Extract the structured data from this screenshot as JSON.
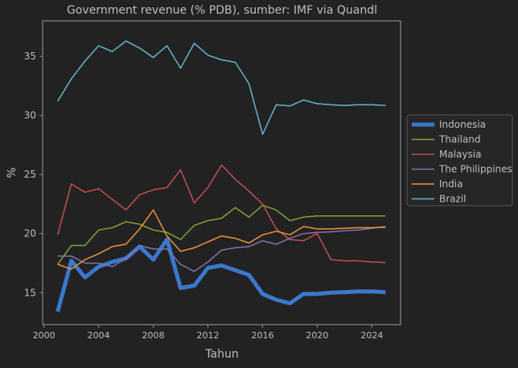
{
  "chart_data": {
    "type": "line",
    "title": "Government revenue (% PDB), sumber: IMF via Quandl",
    "xlabel": "Tahun",
    "ylabel": "%",
    "xlim": [
      1999.9,
      2026.1
    ],
    "ylim": [
      12.3,
      38.0
    ],
    "xticks": [
      2000,
      2004,
      2008,
      2012,
      2016,
      2020,
      2024
    ],
    "yticks": [
      15,
      20,
      25,
      30,
      35
    ],
    "grid": false,
    "legend_position": "center-right-outside",
    "x": [
      2001,
      2002,
      2003,
      2004,
      2005,
      2006,
      2007,
      2008,
      2009,
      2010,
      2011,
      2012,
      2013,
      2014,
      2015,
      2016,
      2017,
      2018,
      2019,
      2020,
      2021,
      2022,
      2023,
      2024,
      2025
    ],
    "series": [
      {
        "name": "Indonesia",
        "color": "#3a78cc",
        "width": 5,
        "values": [
          13.4,
          17.7,
          16.3,
          17.2,
          17.6,
          17.9,
          18.9,
          17.8,
          19.5,
          15.4,
          15.6,
          17.1,
          17.3,
          16.9,
          16.5,
          14.9,
          14.4,
          14.1,
          14.9,
          14.9,
          15.0,
          15.05,
          15.1,
          15.1,
          15.05
        ]
      },
      {
        "name": "Thailand",
        "color": "#7ea33a",
        "width": 1.5,
        "values": [
          17.4,
          19.0,
          19.0,
          20.3,
          20.5,
          21.0,
          20.8,
          20.3,
          20.1,
          19.5,
          20.7,
          21.1,
          21.3,
          22.2,
          21.4,
          22.4,
          22.0,
          21.1,
          21.4,
          21.5,
          21.5,
          21.5,
          21.5,
          21.5,
          21.5
        ]
      },
      {
        "name": "Malaysia",
        "color": "#c44e52",
        "width": 1.5,
        "values": [
          19.9,
          24.2,
          23.5,
          23.8,
          22.9,
          22.0,
          23.3,
          23.7,
          23.9,
          25.4,
          22.6,
          23.9,
          25.8,
          24.6,
          23.6,
          22.5,
          20.4,
          19.5,
          19.4,
          20.0,
          17.8,
          17.7,
          17.7,
          17.6,
          17.55
        ]
      },
      {
        "name": "The Philippines",
        "color": "#8172b3",
        "width": 1.5,
        "values": [
          18.1,
          18.1,
          17.5,
          17.5,
          17.2,
          17.9,
          19.0,
          18.7,
          18.7,
          17.4,
          16.8,
          17.6,
          18.6,
          18.8,
          18.9,
          19.4,
          19.1,
          19.6,
          20.0,
          20.1,
          20.15,
          20.25,
          20.3,
          20.45,
          20.6
        ]
      },
      {
        "name": "India",
        "color": "#f0913c",
        "width": 1.5,
        "values": [
          17.4,
          17.0,
          17.8,
          18.3,
          18.9,
          19.1,
          20.4,
          22.0,
          19.8,
          18.5,
          18.8,
          19.3,
          19.8,
          19.6,
          19.2,
          19.9,
          20.2,
          19.9,
          20.6,
          20.4,
          20.4,
          20.45,
          20.5,
          20.5,
          20.55
        ]
      },
      {
        "name": "Brazil",
        "color": "#64b5cd",
        "width": 1.5,
        "values": [
          31.2,
          33.1,
          34.6,
          35.9,
          35.4,
          36.3,
          35.7,
          34.9,
          35.9,
          34.0,
          36.1,
          35.1,
          34.7,
          34.5,
          32.7,
          28.4,
          30.9,
          30.8,
          31.3,
          31.0,
          30.9,
          30.85,
          30.9,
          30.9,
          30.85
        ]
      }
    ]
  }
}
